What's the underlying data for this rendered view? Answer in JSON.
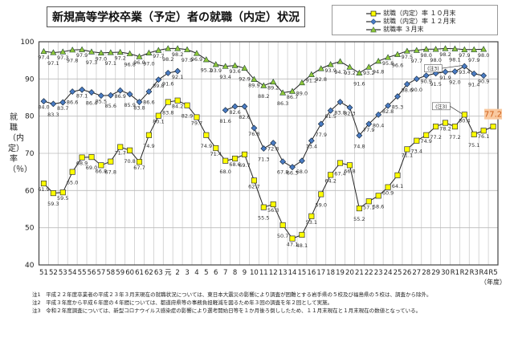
{
  "title": "新規高等学校卒業（予定）者の就職（内定）状況",
  "footnotes": [
    "注1　平成２２年度卒業者の平成２３年３月末現在の就職状況については、東日本大震災の影響により調査が困難とする岩手県の５校及び福島県の５校は、調査から除外。",
    "注2　平成３年度から平成６年度の４年間については、都道府県等の事務負担軽減を図るため年３回の調査を年２回として実施。",
    "注3　令和２年度調査については、新型コロナウイルス感染症の影響により選考開始日等を１か月後ろ倒ししたため、１１月末現在と１月末現在の数値となっている。"
  ],
  "chart_data": {
    "type": "line",
    "title": "新規高等学校卒業（予定）者の就職（内定）状況",
    "ylabel": "就職（内定）率（％）",
    "xlabel": "（年度）",
    "ylim": [
      40,
      100
    ],
    "yticks": [
      40,
      50,
      60,
      70,
      80,
      90,
      100
    ],
    "grid": true,
    "legend_position": "top-right",
    "categories": [
      "51",
      "52",
      "53",
      "54",
      "55",
      "56",
      "57",
      "58",
      "59",
      "60",
      "61",
      "62",
      "63",
      "元",
      "2",
      "3",
      "4",
      "5",
      "6",
      "7",
      "8",
      "9",
      "10",
      "11",
      "12",
      "13",
      "14",
      "15",
      "16",
      "17",
      "18",
      "19",
      "20",
      "21",
      "22",
      "23",
      "24",
      "25",
      "26",
      "27",
      "28",
      "29",
      "30",
      "R1",
      "R2",
      "R3",
      "R4",
      "R5"
    ],
    "series": [
      {
        "name": "就職（内定）率 １０月末",
        "color": "#ffff00",
        "marker": "square",
        "values": [
          61.9,
          59.3,
          59.5,
          65.0,
          68.9,
          69.0,
          66.8,
          67.8,
          71.7,
          70.8,
          67.7,
          74.9,
          80.1,
          83.8,
          84.2,
          82.9,
          79.7,
          74.9,
          71.4,
          68.0,
          68.6,
          69.7,
          62.7,
          55.5,
          56.3,
          50.7,
          47.1,
          48.1,
          53.1,
          59.0,
          64.2,
          67.4,
          66.8,
          55.2,
          57.1,
          58.6,
          60.9,
          64.1,
          71.1,
          73.4,
          74.9,
          77.2,
          78.2,
          77.2,
          80.4,
          75.1,
          76.1,
          77.2
        ]
      },
      {
        "name": "就職（内定）率 １２月末",
        "color": "#4a7cc4",
        "marker": "diamond",
        "values": [
          84.0,
          83.3,
          83.7,
          86.6,
          87.1,
          86.4,
          85.5,
          85.6,
          86.9,
          85.9,
          83.8,
          86.6,
          89.8,
          91.6,
          92.1,
          null,
          null,
          null,
          null,
          81.6,
          82.6,
          82.6,
          76.8,
          71.3,
          72.8,
          67.8,
          66.3,
          68.0,
          73.4,
          77.9,
          81.5,
          83.8,
          82.3,
          74.8,
          77.9,
          80.4,
          82.8,
          85.3,
          88.6,
          90.0,
          90.9,
          91.5,
          91.9,
          92.0,
          93.4,
          91.4,
          90.9,
          null
        ]
      },
      {
        "name": "就職率 ３月末",
        "color": "#8fc93a",
        "marker": "triangle",
        "values": [
          97.4,
          97.1,
          97.3,
          97.8,
          97.9,
          97.3,
          97.0,
          97.1,
          97.2,
          96.8,
          96.0,
          97.0,
          97.7,
          98.2,
          98.2,
          97.9,
          96.9,
          95.2,
          93.9,
          93.4,
          93.6,
          92.9,
          89.9,
          88.2,
          89.2,
          86.3,
          86.7,
          89.0,
          91.2,
          92.8,
          93.9,
          94.7,
          93.2,
          91.6,
          93.2,
          94.8,
          95.8,
          96.6,
          97.5,
          97.7,
          98.0,
          98.0,
          98.2,
          98.1,
          97.9,
          97.9,
          98.0,
          null
        ]
      }
    ],
    "annotations": [
      {
        "text": "(注3)",
        "series": 1,
        "category": "R2"
      },
      {
        "text": "(注3)",
        "series": 0,
        "category": "R2"
      },
      {
        "text": "77.2",
        "series": 0,
        "category": "R5",
        "highlight": "#f9c9a0"
      }
    ]
  }
}
